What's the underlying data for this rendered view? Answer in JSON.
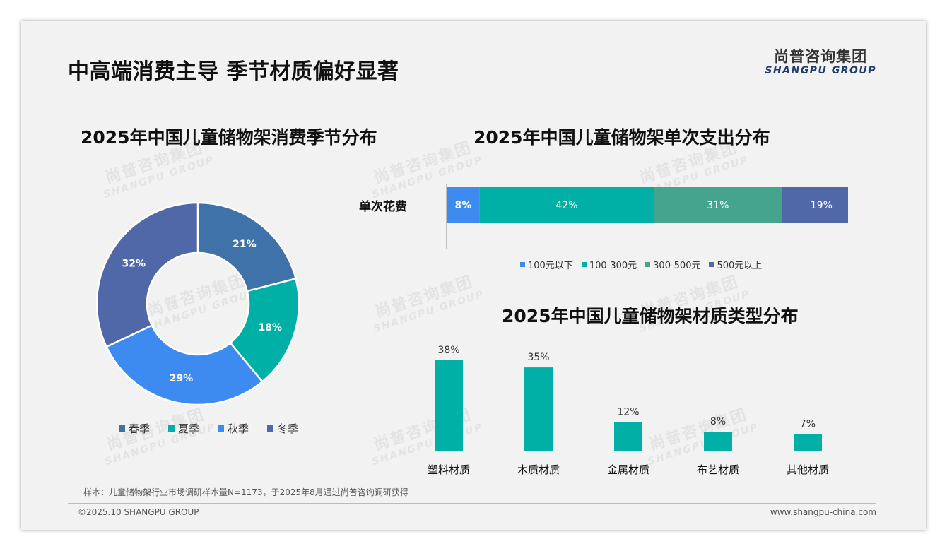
{
  "header": {
    "title": "中高端消费主导 季节材质偏好显著",
    "logo_cn": "尚普咨询集团",
    "logo_en": "SHANGPU GROUP"
  },
  "watermark": {
    "cn": "尚普咨询集团",
    "en": "SHANGPU GROUP"
  },
  "colors": {
    "spring": "#3f72a8",
    "summer": "#00b0a6",
    "autumn": "#3d8bf0",
    "winter": "#5068a8",
    "bar_under100": "#3d8bf0",
    "bar_100_300": "#00b0a6",
    "bar_300_500": "#44a48e",
    "bar_500plus": "#5068a8",
    "material_bar": "#00b0a6"
  },
  "chart_data": [
    {
      "type": "pie",
      "variant": "donut",
      "title": "2025年中国儿童储物架消费季节分布",
      "categories": [
        "春季",
        "夏季",
        "秋季",
        "冬季"
      ],
      "values": [
        21,
        18,
        29,
        32
      ],
      "labels": [
        "21%",
        "18%",
        "29%",
        "32%"
      ],
      "legend": "bottom"
    },
    {
      "type": "bar",
      "variant": "stacked-horizontal-100",
      "title": "2025年中国儿童储物架单次支出分布",
      "categories": [
        "单次花费"
      ],
      "series": [
        {
          "name": "100元以下",
          "values": [
            8
          ],
          "label": "8%"
        },
        {
          "name": "100-300元",
          "values": [
            42
          ],
          "label": "42%"
        },
        {
          "name": "300-500元",
          "values": [
            31
          ],
          "label": "31%"
        },
        {
          "name": "500元以上",
          "values": [
            19
          ],
          "label": "19%"
        }
      ],
      "legend": "bottom"
    },
    {
      "type": "bar",
      "title": "2025年中国儿童储物架材质类型分布",
      "categories": [
        "塑料材质",
        "木质材质",
        "金属材质",
        "布艺材质",
        "其他材质"
      ],
      "values": [
        38,
        35,
        12,
        8,
        7
      ],
      "labels": [
        "38%",
        "35%",
        "12%",
        "8%",
        "7%"
      ],
      "ylim": [
        0,
        40
      ],
      "grid": false
    }
  ],
  "footer": {
    "note": "样本：儿童储物架行业市场调研样本量N=1173，于2025年8月通过尚普咨询调研获得",
    "copyright": "©2025.10 SHANGPU GROUP",
    "website": "www.shangpu-china.com"
  }
}
